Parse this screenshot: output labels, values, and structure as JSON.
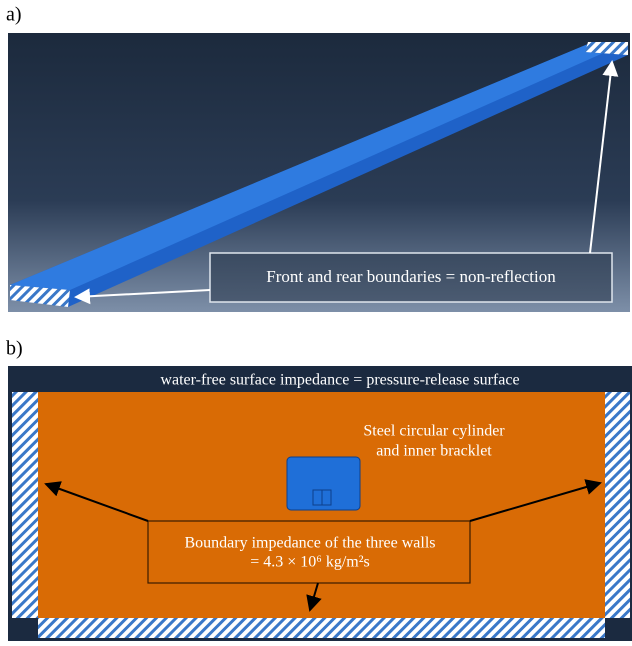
{
  "panel_a": {
    "label": "a)",
    "annotation": "Front and rear boundaries = non-reflection"
  },
  "panel_b": {
    "label": "b)",
    "top_text": "water-free surface impedance = pressure-release surface",
    "cylinder_text": [
      "Steel circular cylinder",
      "and inner bracklet"
    ],
    "wall_text": [
      "Boundary impedance of the three walls",
      "= 4.3 × 10⁶ kg/m²s"
    ]
  }
}
